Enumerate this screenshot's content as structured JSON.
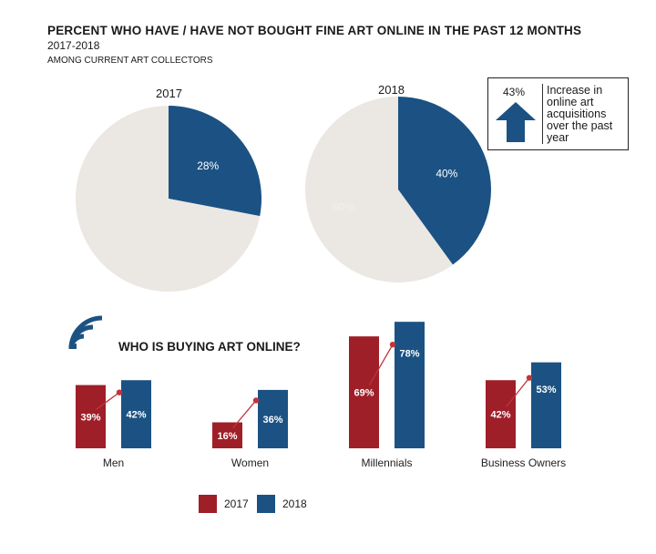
{
  "header": {
    "title": "PERCENT WHO HAVE / HAVE NOT BOUGHT FINE ART ONLINE IN THE PAST 12 MONTHS",
    "subtitle": "2017-2018",
    "note": "AMONG CURRENT ART COLLECTORS"
  },
  "callout": {
    "value": "43%",
    "text": "Increase in online art acquisitions over the past year",
    "icon": "up-arrow-icon"
  },
  "section": {
    "title": "WHO IS BUYING ART ONLINE?",
    "icon": "wifi-signal-icon"
  },
  "colors": {
    "y2017": "#9e1f28",
    "y2018": "#1b5283",
    "pie_rest": "#ebe7e3",
    "trend": "#c4323a"
  },
  "chart_data": [
    {
      "type": "pie",
      "title": "2017",
      "slices": [
        {
          "label": "bought",
          "value": 28,
          "display": "28%"
        },
        {
          "label": "not bought",
          "value": 72,
          "display": ""
        }
      ]
    },
    {
      "type": "pie",
      "title": "2018",
      "slices": [
        {
          "label": "bought",
          "value": 40,
          "display": "40%"
        },
        {
          "label": "not bought",
          "value": 60,
          "display": "60%"
        }
      ]
    },
    {
      "type": "bar",
      "title": "WHO IS BUYING ART ONLINE?",
      "categories": [
        "Men",
        "Women",
        "Millennials",
        "Business Owners"
      ],
      "series": [
        {
          "name": "2017",
          "values": [
            39,
            16,
            69,
            42
          ]
        },
        {
          "name": "2018",
          "values": [
            42,
            36,
            78,
            53
          ]
        }
      ],
      "legend_position": "bottom"
    }
  ]
}
